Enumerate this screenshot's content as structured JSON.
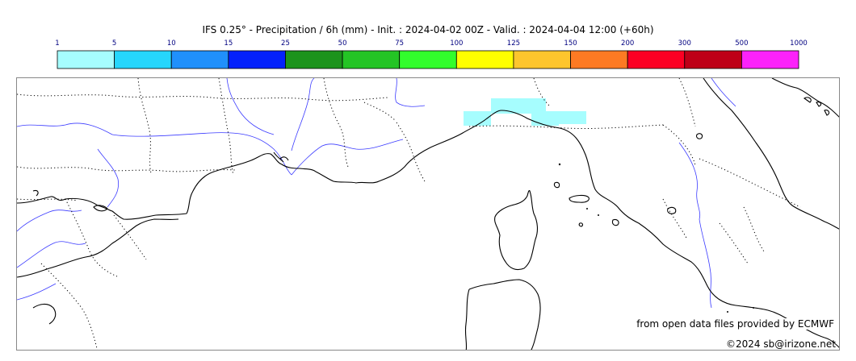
{
  "title": "IFS 0.25° - Precipitation / 6h (mm) - Init. : 2024-04-02 00Z - Valid. : 2024-04-04 12:00 (+60h)",
  "colorbar": {
    "ticks": [
      "1",
      "5",
      "10",
      "15",
      "25",
      "50",
      "75",
      "100",
      "125",
      "150",
      "200",
      "300",
      "500",
      "1000"
    ],
    "colors": [
      "#a6fdfe",
      "#26d6fc",
      "#2090fb",
      "#0421fb",
      "#1c931c",
      "#24c425",
      "#32fd2c",
      "#fefe00",
      "#fdc52d",
      "#fd7a23",
      "#fc0023",
      "#be0017",
      "#fc22fa"
    ],
    "tick_color": "#000080"
  },
  "map": {
    "precip_color": "#a6fdfe",
    "precip_class": "1-5",
    "coast_color": "#000000",
    "river_color": "#3b3bff",
    "border_color": "#000000"
  },
  "attribution": "from open data files provided by ECMWF",
  "copyright": "©2024 sb@irizone.net"
}
